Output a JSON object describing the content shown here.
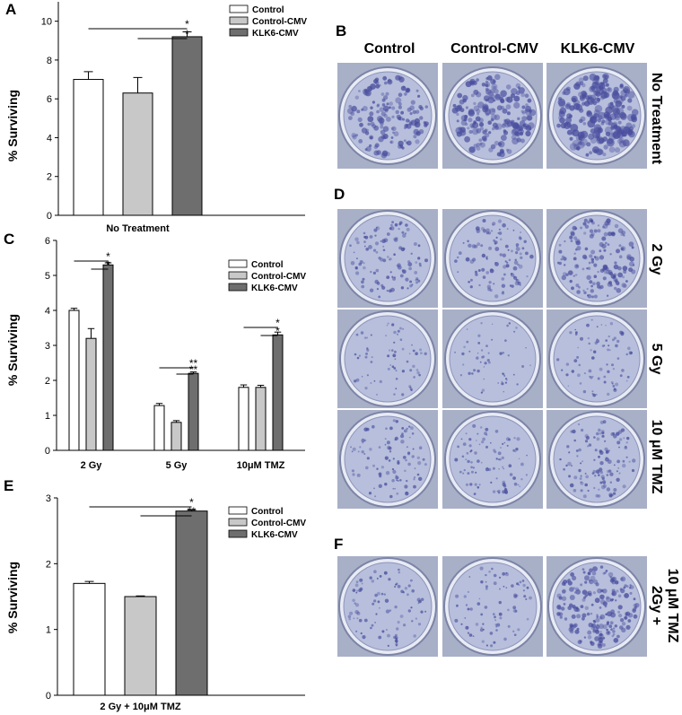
{
  "colors": {
    "control": "#ffffff",
    "control_cmv": "#c8c8c8",
    "klk6_cmv": "#6e6e6e",
    "plate_bg": "#a8b0c8",
    "well_fill": "#b7bfdc",
    "colony": "#4a4e9e"
  },
  "panels": {
    "A": {
      "label": "A"
    },
    "B": {
      "label": "B",
      "columns": [
        "Control",
        "Control-CMV",
        "KLK6-CMV"
      ],
      "row_label": "No Treatment"
    },
    "C": {
      "label": "C"
    },
    "D": {
      "label": "D",
      "row_labels": [
        "2 Gy",
        "5 Gy",
        "10 μM TMZ"
      ]
    },
    "E": {
      "label": "E"
    },
    "F": {
      "label": "F",
      "row_label_line1": "2Gy +",
      "row_label_line2": "10 μM TMZ"
    }
  },
  "chart_data": [
    {
      "id": "A",
      "type": "bar",
      "ylabel": "% Surviving",
      "ylim": [
        0,
        11
      ],
      "yticks": [
        0,
        2,
        4,
        6,
        8,
        10
      ],
      "categories": [
        "No Treatment"
      ],
      "legend": {
        "position": "top-right",
        "entries": [
          "Control",
          "Control-CMV",
          "KLK6-CMV"
        ]
      },
      "series": [
        {
          "name": "Control",
          "values": [
            7.0
          ],
          "errors": [
            0.4
          ]
        },
        {
          "name": "Control-CMV",
          "values": [
            6.3
          ],
          "errors": [
            0.8
          ]
        },
        {
          "name": "KLK6-CMV",
          "values": [
            9.2
          ],
          "errors": [
            0.25
          ]
        }
      ],
      "significance": [
        {
          "category": 0,
          "from": 0,
          "to": 2,
          "label": "*"
        },
        {
          "category": 0,
          "from": 1,
          "to": 2,
          "label": "*"
        }
      ]
    },
    {
      "id": "C",
      "type": "bar",
      "ylabel": "% Surviving",
      "ylim": [
        0,
        6
      ],
      "yticks": [
        0,
        1,
        2,
        3,
        4,
        5,
        6
      ],
      "categories": [
        "2 Gy",
        "5 Gy",
        "10μM TMZ"
      ],
      "legend": {
        "position": "top-right",
        "entries": [
          "Control",
          "Control-CMV",
          "KLK6-CMV"
        ]
      },
      "series": [
        {
          "name": "Control",
          "values": [
            4.0,
            1.28,
            1.8
          ],
          "errors": [
            0.06,
            0.06,
            0.07
          ]
        },
        {
          "name": "Control-CMV",
          "values": [
            3.2,
            0.8,
            1.8
          ],
          "errors": [
            0.28,
            0.05,
            0.06
          ]
        },
        {
          "name": "KLK6-CMV",
          "values": [
            5.3,
            2.2,
            3.3
          ],
          "errors": [
            0.06,
            0.04,
            0.08
          ]
        }
      ],
      "significance": [
        {
          "category": 0,
          "from": 0,
          "to": 2,
          "label": "*"
        },
        {
          "category": 0,
          "from": 1,
          "to": 2,
          "label": "*"
        },
        {
          "category": 1,
          "from": 0,
          "to": 2,
          "label": "**"
        },
        {
          "category": 1,
          "from": 1,
          "to": 2,
          "label": "**"
        },
        {
          "category": 2,
          "from": 0,
          "to": 2,
          "label": "*"
        },
        {
          "category": 2,
          "from": 1,
          "to": 2,
          "label": "*"
        }
      ]
    },
    {
      "id": "E",
      "type": "bar",
      "ylabel": "% Surviving",
      "ylim": [
        0,
        3
      ],
      "yticks": [
        0,
        1,
        2,
        3
      ],
      "categories": [
        "2 Gy + 10μM TMZ"
      ],
      "legend": {
        "position": "top-right",
        "entries": [
          "Control",
          "Control-CMV",
          "KLK6-CMV"
        ]
      },
      "series": [
        {
          "name": "Control",
          "values": [
            1.7
          ],
          "errors": [
            0.03
          ]
        },
        {
          "name": "Control-CMV",
          "values": [
            1.5
          ],
          "errors": [
            0.01
          ]
        },
        {
          "name": "KLK6-CMV",
          "values": [
            2.8
          ],
          "errors": [
            0.02
          ]
        }
      ],
      "significance": [
        {
          "category": 0,
          "from": 0,
          "to": 2,
          "label": "*"
        },
        {
          "category": 0,
          "from": 1,
          "to": 2,
          "label": "**"
        }
      ]
    }
  ]
}
